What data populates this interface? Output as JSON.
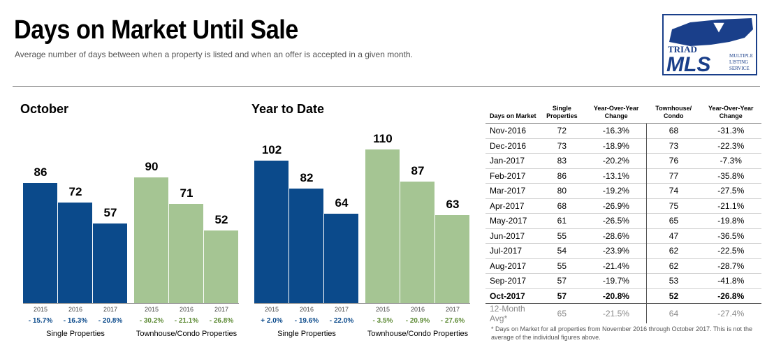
{
  "header": {
    "title": "Days on Market Until Sale",
    "subtitle": "Average number of days between when a property is listed and when an offer is accepted in a given month."
  },
  "logo": {
    "brand_top": "TRIAD",
    "brand_main": "MLS",
    "tagline": [
      "MULTIPLE",
      "LISTING",
      "SERVICE"
    ]
  },
  "colors": {
    "single": "#0b4a8b",
    "townhouse": "#a5c593",
    "change_single": "#0b4a8b",
    "change_townhouse": "#5e8b36"
  },
  "chart_data": [
    {
      "type": "bar",
      "title": "October",
      "groups": [
        {
          "name": "Single Properties",
          "categories": [
            "2015",
            "2016",
            "2017"
          ],
          "values": [
            86,
            72,
            57
          ],
          "changes": [
            "- 15.7%",
            "- 16.3%",
            "- 20.8%"
          ]
        },
        {
          "name": "Townhouse/Condo Properties",
          "categories": [
            "2015",
            "2016",
            "2017"
          ],
          "values": [
            90,
            71,
            52
          ],
          "changes": [
            "- 30.2%",
            "- 21.1%",
            "- 26.8%"
          ]
        }
      ]
    },
    {
      "type": "bar",
      "title": "Year to Date",
      "groups": [
        {
          "name": "Single Properties",
          "categories": [
            "2015",
            "2016",
            "2017"
          ],
          "values": [
            102,
            82,
            64
          ],
          "changes": [
            "+ 2.0%",
            "- 19.6%",
            "- 22.0%"
          ]
        },
        {
          "name": "Townhouse/Condo Properties",
          "categories": [
            "2015",
            "2016",
            "2017"
          ],
          "values": [
            110,
            87,
            63
          ],
          "changes": [
            "- 3.5%",
            "- 20.9%",
            "- 27.6%"
          ]
        }
      ]
    }
  ],
  "table": {
    "headers": [
      "Days on Market",
      "Single Properties",
      "Year-Over-Year Change",
      "Townhouse/ Condo",
      "Year-Over-Year Change"
    ],
    "rows": [
      [
        "Nov-2016",
        "72",
        "-16.3%",
        "68",
        "-31.3%"
      ],
      [
        "Dec-2016",
        "73",
        "-18.9%",
        "73",
        "-22.3%"
      ],
      [
        "Jan-2017",
        "83",
        "-20.2%",
        "76",
        "-7.3%"
      ],
      [
        "Feb-2017",
        "86",
        "-13.1%",
        "77",
        "-35.8%"
      ],
      [
        "Mar-2017",
        "80",
        "-19.2%",
        "74",
        "-27.5%"
      ],
      [
        "Apr-2017",
        "68",
        "-26.9%",
        "75",
        "-21.1%"
      ],
      [
        "May-2017",
        "61",
        "-26.5%",
        "65",
        "-19.8%"
      ],
      [
        "Jun-2017",
        "55",
        "-28.6%",
        "47",
        "-36.5%"
      ],
      [
        "Jul-2017",
        "54",
        "-23.9%",
        "62",
        "-22.5%"
      ],
      [
        "Aug-2017",
        "55",
        "-21.4%",
        "62",
        "-28.7%"
      ],
      [
        "Sep-2017",
        "57",
        "-19.7%",
        "53",
        "-41.8%"
      ],
      [
        "Oct-2017",
        "57",
        "-20.8%",
        "52",
        "-26.8%"
      ]
    ],
    "avg_row": [
      "12-Month Avg*",
      "65",
      "-21.5%",
      "64",
      "-27.4%"
    ],
    "footnote": "* Days on Market for all properties from November 2016 through October 2017. This is not the average of the individual figures above."
  }
}
